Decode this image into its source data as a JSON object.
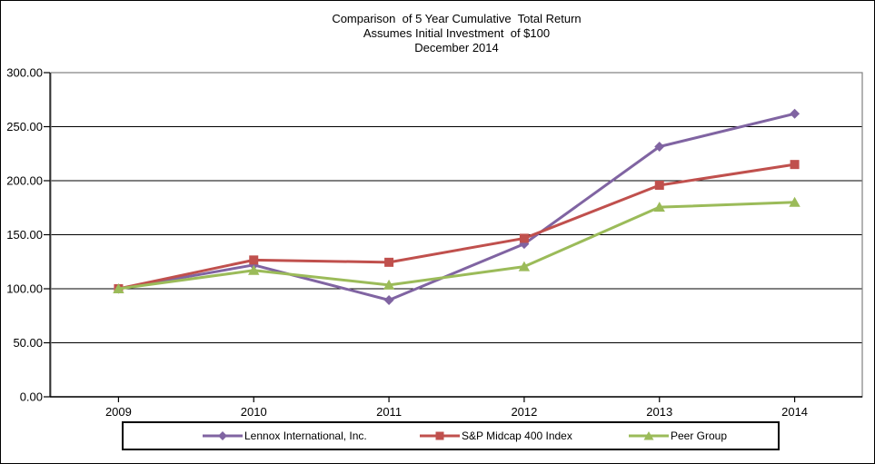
{
  "chart_data": {
    "type": "line",
    "title": "Comparison  of 5 Year Cumulative  Total Return",
    "subtitle": "Assumes Initial Investment  of $100",
    "date_line": "December 2014",
    "categories": [
      "2009",
      "2010",
      "2011",
      "2012",
      "2013",
      "2014"
    ],
    "series": [
      {
        "name": "Lennox International, Inc.",
        "color": "#8064A2",
        "marker": "diamond",
        "values": [
          100,
          122,
          89.5,
          141.5,
          231.5,
          262
        ]
      },
      {
        "name": "S&P Midcap 400 Index",
        "color": "#C0504D",
        "marker": "square",
        "values": [
          100,
          126.6,
          124.5,
          146.7,
          195.8,
          215
        ]
      },
      {
        "name": "Peer Group",
        "color": "#9BBB59",
        "marker": "triangle",
        "values": [
          100,
          117,
          103.5,
          120.5,
          175.5,
          180
        ]
      }
    ],
    "y_axis": {
      "min": 0,
      "max": 300,
      "step": 50,
      "tick_labels": [
        "0.00",
        "50.00",
        "100.00",
        "150.00",
        "200.00",
        "250.00",
        "300.00"
      ]
    },
    "grid": true,
    "legend_position": "bottom",
    "colors": {
      "gridline": "#000000",
      "plot_border": "#808080",
      "axis": "#000000",
      "text": "#000000"
    }
  }
}
